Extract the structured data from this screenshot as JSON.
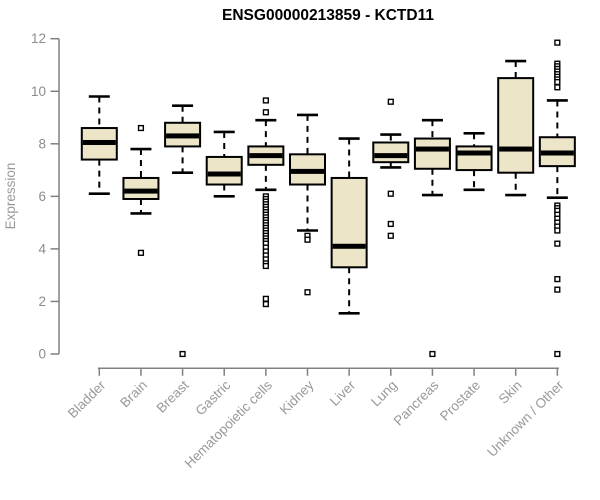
{
  "header": {
    "title": "ENSG00000213859 - KCTD11"
  },
  "chart_data": {
    "type": "box",
    "title": "ENSG00000213859 - KCTD11",
    "xlabel": "",
    "ylabel": "Expression",
    "ylim": [
      0,
      12
    ],
    "yticks": [
      0,
      2,
      4,
      6,
      8,
      10,
      12
    ],
    "grid": false,
    "legend": "none",
    "categories": [
      "Bladder",
      "Brain",
      "Breast",
      "Gastric",
      "Hematopoietic cells",
      "Kidney",
      "Liver",
      "Lung",
      "Pancreas",
      "Prostate",
      "Skin",
      "Unknown / Other"
    ],
    "boxes": [
      {
        "category": "Bladder",
        "low": 6.1,
        "q1": 7.4,
        "median": 8.05,
        "q3": 8.6,
        "high": 9.8,
        "outliers": []
      },
      {
        "category": "Brain",
        "low": 5.35,
        "q1": 5.9,
        "median": 6.2,
        "q3": 6.7,
        "high": 7.8,
        "outliers": [
          8.6,
          3.85
        ]
      },
      {
        "category": "Breast",
        "low": 6.9,
        "q1": 7.9,
        "median": 8.3,
        "q3": 8.8,
        "high": 9.45,
        "outliers": [
          0
        ]
      },
      {
        "category": "Gastric",
        "low": 6.0,
        "q1": 6.45,
        "median": 6.85,
        "q3": 7.5,
        "high": 8.45,
        "outliers": []
      },
      {
        "category": "Hematopoietic cells",
        "low": 6.25,
        "q1": 7.2,
        "median": 7.55,
        "q3": 7.9,
        "high": 8.9,
        "outliers": [
          9.65,
          9.2,
          6.0,
          5.9,
          5.8,
          5.7,
          5.6,
          5.5,
          5.4,
          5.3,
          5.2,
          5.1,
          5.0,
          4.9,
          4.8,
          4.7,
          4.6,
          4.5,
          4.4,
          4.3,
          4.2,
          4.05,
          3.9,
          3.75,
          3.6,
          3.45,
          3.35,
          2.1,
          1.9
        ]
      },
      {
        "category": "Kidney",
        "low": 4.7,
        "q1": 6.45,
        "median": 6.95,
        "q3": 7.6,
        "high": 9.1,
        "outliers": [
          4.5,
          4.35,
          2.35
        ]
      },
      {
        "category": "Liver",
        "low": 1.55,
        "q1": 3.3,
        "median": 4.1,
        "q3": 6.7,
        "high": 8.2,
        "outliers": []
      },
      {
        "category": "Lung",
        "low": 7.1,
        "q1": 7.3,
        "median": 7.55,
        "q3": 8.05,
        "high": 8.35,
        "outliers": [
          9.6,
          6.1,
          4.95,
          4.5
        ]
      },
      {
        "category": "Pancreas",
        "low": 6.05,
        "q1": 7.05,
        "median": 7.8,
        "q3": 8.2,
        "high": 8.9,
        "outliers": [
          0
        ]
      },
      {
        "category": "Prostate",
        "low": 6.25,
        "q1": 7.0,
        "median": 7.65,
        "q3": 7.9,
        "high": 8.4,
        "outliers": []
      },
      {
        "category": "Skin",
        "low": 6.05,
        "q1": 6.9,
        "median": 7.8,
        "q3": 10.5,
        "high": 11.15,
        "outliers": []
      },
      {
        "category": "Unknown / Other",
        "low": 5.95,
        "q1": 7.15,
        "median": 7.65,
        "q3": 8.25,
        "high": 9.65,
        "outliers": [
          11.85,
          11.05,
          10.95,
          10.85,
          10.75,
          10.65,
          10.55,
          10.45,
          10.35,
          10.15,
          5.65,
          5.55,
          5.45,
          5.3,
          5.15,
          5.0,
          4.85,
          4.7,
          4.2,
          2.85,
          2.45,
          0
        ]
      }
    ],
    "colors": {
      "box_fill": "#ECE5C8",
      "box_stroke": "#000000",
      "median": "#000000",
      "whisker": "#000000",
      "outlier_stroke": "#000000",
      "outlier_fill": "#FFFFFF",
      "axis": "#808080",
      "tick_label": "#8C8C8C",
      "axis_title": "#999999",
      "title": "#000000"
    }
  }
}
